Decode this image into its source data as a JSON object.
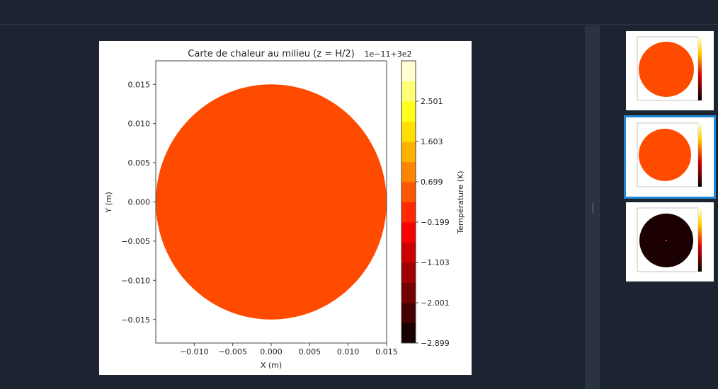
{
  "chart_data": {
    "type": "heatmap",
    "title": "Carte de chaleur au milieu (z = H/2)",
    "xlabel": "X (m)",
    "ylabel": "Y (m)",
    "xlim": [
      -0.015,
      0.015
    ],
    "ylim": [
      -0.018,
      0.018
    ],
    "x_ticks": [
      "−0.010",
      "−0.005",
      "0.000",
      "0.005",
      "0.010",
      "0.015"
    ],
    "x_tick_values": [
      -0.01,
      -0.005,
      0.0,
      0.005,
      0.01,
      0.015
    ],
    "y_ticks": [
      "0.015",
      "0.010",
      "0.005",
      "0.000",
      "−0.005",
      "−0.010",
      "−0.015"
    ],
    "y_tick_values": [
      0.015,
      0.01,
      0.005,
      0.0,
      -0.005,
      -0.01,
      -0.015
    ],
    "domain": {
      "shape": "circle",
      "center": [
        0.0,
        0.0
      ],
      "radius": 0.015
    },
    "field_color": "#ff4b00",
    "colorbar": {
      "label": "Température (K)",
      "offset_text": "1e−11+3e2",
      "tick_labels": [
        "2.501",
        "1.603",
        "0.699",
        "−0.199",
        "−1.103",
        "−2.001",
        "−2.899"
      ],
      "tick_values": [
        2.501,
        1.603,
        0.699,
        -0.199,
        -1.103,
        -2.001,
        -2.899
      ],
      "range": [
        -2.899,
        3.4
      ],
      "colormap": "hot",
      "levels": 14
    }
  },
  "thumbnails": [
    {
      "selected": false,
      "fill": "#ff4b00"
    },
    {
      "selected": true,
      "fill": "#ff4b00"
    },
    {
      "selected": false,
      "fill": "#1a0000"
    }
  ]
}
